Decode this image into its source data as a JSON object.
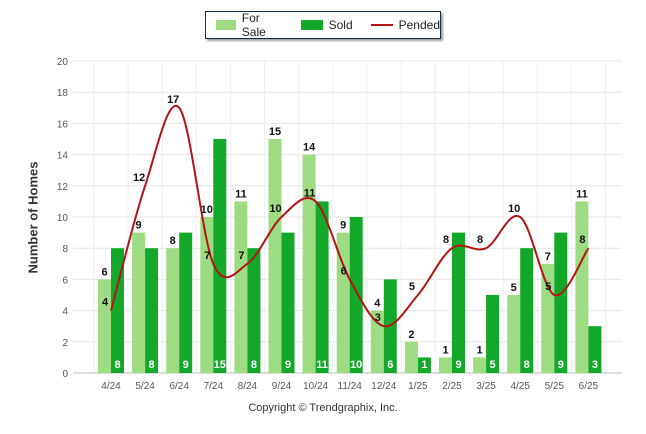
{
  "legend": {
    "for_sale": "For Sale",
    "sold": "Sold",
    "pended": "Pended"
  },
  "credit": "Copyright © Trendgraphix, Inc.",
  "colors": {
    "for_sale": "#9edc84",
    "sold": "#14a82a",
    "pended": "#b41414",
    "grid": "#e6e6e6"
  },
  "chart_data": {
    "type": "bar",
    "ylabel": "Number of Homes",
    "ylim": [
      0,
      20
    ],
    "yticks": [
      0,
      2,
      4,
      6,
      8,
      10,
      12,
      14,
      16,
      18,
      20
    ],
    "categories": [
      "4/24",
      "5/24",
      "6/24",
      "7/24",
      "8/24",
      "9/24",
      "10/24",
      "11/24",
      "12/24",
      "1/25",
      "2/25",
      "3/25",
      "4/25",
      "5/25",
      "6/25"
    ],
    "series": [
      {
        "name": "For Sale",
        "type": "bar",
        "values": [
          6,
          9,
          8,
          10,
          11,
          15,
          14,
          9,
          4,
          2,
          1,
          1,
          5,
          7,
          11
        ]
      },
      {
        "name": "Sold",
        "type": "bar",
        "values": [
          8,
          8,
          9,
          15,
          8,
          9,
          11,
          10,
          6,
          1,
          9,
          5,
          8,
          9,
          3
        ]
      },
      {
        "name": "Pended",
        "type": "line",
        "values": [
          4,
          12,
          17,
          7,
          7,
          10,
          11,
          6,
          3,
          5,
          8,
          8,
          10,
          5,
          8
        ]
      }
    ],
    "legend_position": "top-center",
    "grid": true
  }
}
